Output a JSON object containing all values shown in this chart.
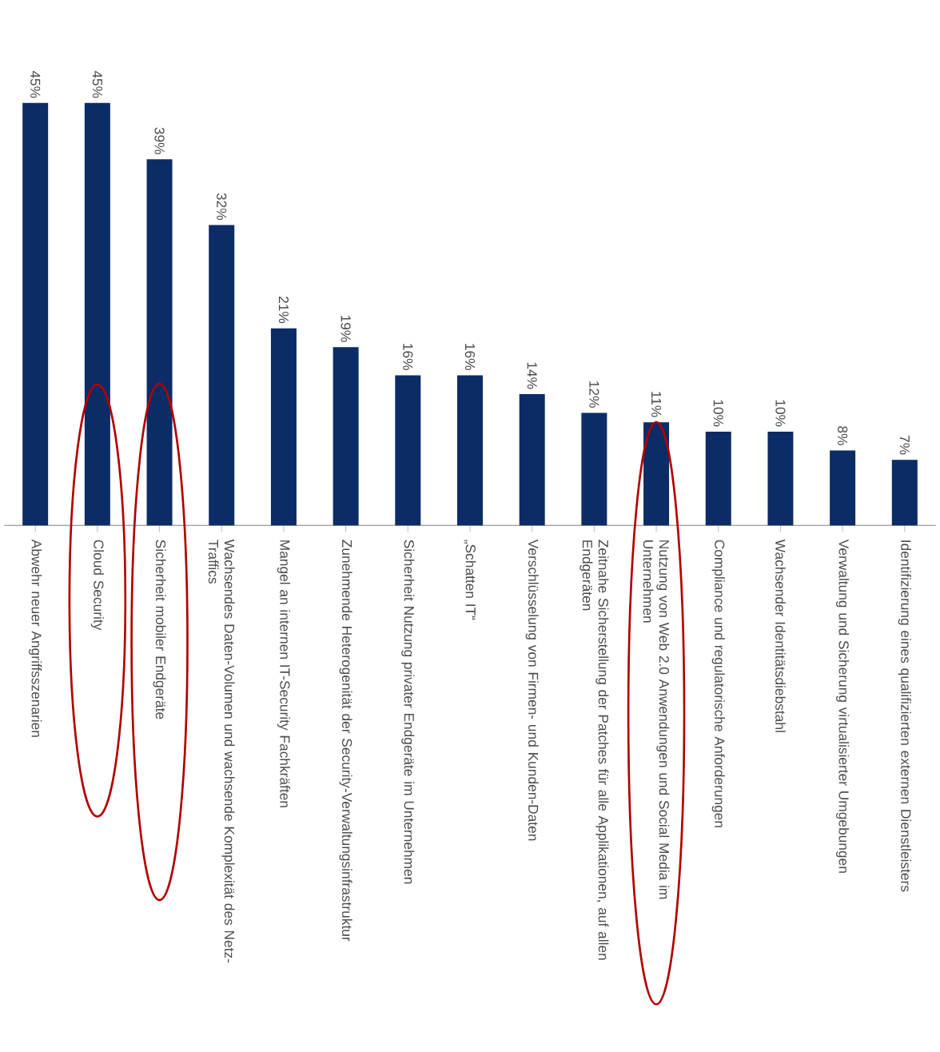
{
  "chart_data": {
    "type": "bar",
    "categories": [
      "Abwehr neuer Angriffsszenarien",
      "Cloud Security",
      "Sicherheit mobiler Endgeräte",
      "Wachsendes Daten-Volumen und wachsende Komplexität des Netz-Traffics",
      "Mangel an internen IT-Security Fachkräften",
      "Zunehmende Heterogenität der Security-Verwaltungsinfrastruktur",
      "Sicherheit Nutzung privater Endgeräte im Unternehmen",
      "„Schatten IT“",
      "Verschlüsselung von Firmen- und Kunden-Daten",
      "Zeitnahe Sicherstellung der Patches für alle Applikationen, auf allen Endgeräten",
      "Nutzung von Web 2.0 Anwendungen und Social Media im Unternehmen",
      "Compliance und regulatorische Anforderungen",
      "Wachsender Identitätsdiebstahl",
      "Verwaltung und Sicherung virtualisierter Umgebungen",
      "Identifizierung eines qualifizierten externen Dienstleisters"
    ],
    "values": [
      45,
      45,
      39,
      32,
      21,
      19,
      16,
      16,
      14,
      12,
      11,
      10,
      10,
      8,
      7
    ],
    "value_labels": [
      "45%",
      "45%",
      "39%",
      "32%",
      "21%",
      "19%",
      "16%",
      "16%",
      "14%",
      "12%",
      "11%",
      "10%",
      "10%",
      "8%",
      "7%"
    ],
    "color": "#0b2c66"
  }
}
